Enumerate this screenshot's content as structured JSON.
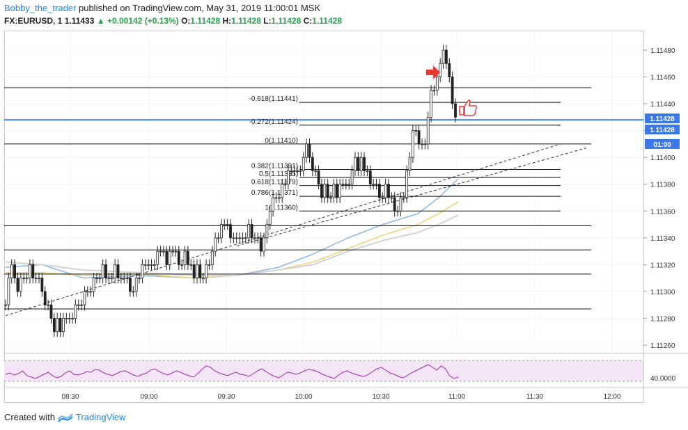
{
  "header": {
    "author": "Bobby_the_trader",
    "published": "published on TradingView.com, May 31, 2019 11:00:01 MSK",
    "symbol_info": "FX:EURUSD, 1",
    "price": "1.11433",
    "change": "+0.00142 (+0.13%)",
    "o_label": "O:",
    "o_value": "1.11428",
    "h_label": "H:",
    "h_value": "1.11428",
    "l_label": "L:",
    "l_value": "1.11428",
    "c_label": "C:",
    "c_value": "1.11428"
  },
  "footer": {
    "created_with": "Created with",
    "brand": "TradingView"
  },
  "colors": {
    "up_change": "#22a34a",
    "price_line": "#3b78e7",
    "ma_fast": "#8fb8ea",
    "ma_mid": "#f0d37a",
    "ma_slow": "#d3d3d3",
    "rsi_line": "#9c27b0",
    "rsi_fill": "#f3e5f5",
    "annotation_arrow": "#e53935"
  },
  "icons": [
    "tradingview-logo-icon",
    "red-arrow-icon",
    "thumbs-up-icon"
  ],
  "chart_data": {
    "type": "line",
    "symbol": "FX:EURUSD, 1",
    "ylim": [
      1.1125,
      1.1149
    ],
    "y_ticks": [
      "1.11260",
      "1.11280",
      "1.11300",
      "1.11320",
      "1.11340",
      "1.11360",
      "1.11380",
      "1.11400",
      "1.11420",
      "1.11440",
      "1.11460",
      "1.11480"
    ],
    "x_ticks": [
      "08:30",
      "09:00",
      "09:30",
      "10:00",
      "10:30",
      "11:00",
      "11:30",
      "12:00"
    ],
    "price_labels": [
      "1.11428",
      "1.11428",
      "01:00"
    ],
    "current_price": 1.11428,
    "fib_levels": [
      {
        "label": "-0.618(1.11441)",
        "value": 1.11441
      },
      {
        "label": "-0.272(1.11424)",
        "value": 1.11424
      },
      {
        "label": "0(1.11410)",
        "value": 1.1141
      },
      {
        "label": "0.382(1.11391)",
        "value": 1.11391
      },
      {
        "label": "0.5(1.11385)",
        "value": 1.11385
      },
      {
        "label": "0.618(1.11379)",
        "value": 1.11379
      },
      {
        "label": "0.786(1.11371)",
        "value": 1.11371
      },
      {
        "label": "1(1.11360)",
        "value": 1.1136
      }
    ],
    "horizontal_levels": [
      1.11452,
      1.11349,
      1.11331,
      1.11313,
      1.11287
    ],
    "series": [
      {
        "values": [
          1.1129,
          1.1131,
          1.1132,
          1.1131,
          1.113,
          1.1131,
          1.1131,
          1.1131,
          1.1132,
          1.1131,
          1.1131,
          1.1131,
          1.113,
          1.1129,
          1.1129,
          1.1128,
          1.1127,
          1.1128,
          1.1127,
          1.1128,
          1.1128,
          1.1128,
          1.1128,
          1.1129,
          1.1129,
          1.1129,
          1.113,
          1.113,
          1.113,
          1.1131,
          1.1131,
          1.1131,
          1.1132,
          1.1131,
          1.1131,
          1.1131,
          1.1132,
          1.1131,
          1.1131,
          1.1131,
          1.1131,
          1.113,
          1.113,
          1.1131,
          1.1131,
          1.1132,
          1.1132,
          1.1132,
          1.1132,
          1.1132,
          1.1133,
          1.1133,
          1.1133,
          1.1132,
          1.1133,
          1.1133,
          1.1133,
          1.1132,
          1.1132,
          1.1133,
          1.1132,
          1.1132,
          1.1131,
          1.1132,
          1.1131,
          1.1131,
          1.1132,
          1.1132,
          1.1133,
          1.1134,
          1.1134,
          1.1135,
          1.1135,
          1.1135,
          1.1134,
          1.1134,
          1.1134,
          1.1134,
          1.1134,
          1.1134,
          1.1135,
          1.1134,
          1.1134,
          1.1134,
          1.1133,
          1.1134,
          1.1135,
          1.1136,
          1.1137,
          1.1137,
          1.1137,
          1.1138,
          1.1138,
          1.1139,
          1.1139,
          1.1139,
          1.1139,
          1.1139,
          1.114,
          1.1141,
          1.114,
          1.1139,
          1.1139,
          1.1138,
          1.1137,
          1.1138,
          1.1137,
          1.1137,
          1.1138,
          1.1137,
          1.1138,
          1.1138,
          1.1138,
          1.1138,
          1.1139,
          1.114,
          1.1139,
          1.114,
          1.1139,
          1.1139,
          1.1138,
          1.1138,
          1.1138,
          1.1137,
          1.1137,
          1.1138,
          1.1137,
          1.1137,
          1.1136,
          1.1136,
          1.1137,
          1.1137,
          1.1139,
          1.114,
          1.1142,
          1.1142,
          1.1141,
          1.1141,
          1.1141,
          1.1143,
          1.1145,
          1.1145,
          1.1146,
          1.1147,
          1.1148,
          1.1147,
          1.1146,
          1.1144,
          1.1143
        ]
      }
    ],
    "rsi": {
      "label": "40.0000",
      "values": [
        50,
        52,
        49,
        51,
        55,
        48,
        46,
        44,
        47,
        50,
        53,
        48,
        45,
        47,
        52,
        55,
        50,
        49,
        51,
        54,
        53,
        57,
        56,
        52,
        50,
        48,
        51,
        54,
        55,
        52,
        49,
        47,
        50,
        52,
        56,
        58,
        54,
        51,
        49,
        52,
        55,
        53,
        50,
        48,
        46,
        51,
        57,
        62,
        60,
        55,
        52,
        50,
        48,
        51,
        53,
        50,
        49,
        47,
        51,
        55,
        58,
        54,
        50,
        47,
        45,
        49,
        53,
        52,
        50,
        52,
        55,
        57,
        56,
        54,
        51,
        48,
        46,
        44,
        49,
        53,
        55,
        52,
        50,
        48,
        47,
        50,
        54,
        58,
        60,
        56,
        52,
        50,
        47,
        45,
        48,
        52,
        55,
        58,
        61,
        64,
        60,
        56,
        62,
        58,
        48,
        44,
        46
      ]
    }
  }
}
